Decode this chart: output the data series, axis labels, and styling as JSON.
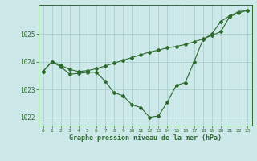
{
  "line1_x": [
    0,
    1,
    2,
    3,
    4,
    5,
    6,
    7,
    8,
    9,
    10,
    11,
    12,
    13,
    14,
    15,
    16,
    17,
    18,
    19,
    20,
    21,
    22,
    23
  ],
  "line1_y": [
    1023.65,
    1024.0,
    1023.82,
    1023.55,
    1023.58,
    1023.62,
    1023.62,
    1023.3,
    1022.88,
    1022.78,
    1022.45,
    1022.35,
    1022.0,
    1022.05,
    1022.55,
    1023.15,
    1023.25,
    1024.0,
    1024.8,
    1025.0,
    1025.45,
    1025.65,
    1025.8,
    1025.85
  ],
  "line2_x": [
    0,
    1,
    2,
    3,
    4,
    5,
    6,
    7,
    8,
    9,
    10,
    11,
    12,
    13,
    14,
    15,
    16,
    17,
    18,
    19,
    20,
    21,
    22,
    23
  ],
  "line2_y": [
    1023.65,
    1024.0,
    1023.88,
    1023.72,
    1023.65,
    1023.68,
    1023.75,
    1023.85,
    1023.95,
    1024.05,
    1024.15,
    1024.25,
    1024.35,
    1024.42,
    1024.5,
    1024.55,
    1024.62,
    1024.72,
    1024.82,
    1024.95,
    1025.08,
    1025.62,
    1025.76,
    1025.85
  ],
  "line_color": "#2d6a2d",
  "bg_color": "#cce8e8",
  "grid_color": "#aad0d0",
  "xlabel": "Graphe pression niveau de la mer (hPa)",
  "ylim": [
    1021.7,
    1026.05
  ],
  "yticks": [
    1022,
    1023,
    1024,
    1025
  ],
  "xticks": [
    0,
    1,
    2,
    3,
    4,
    5,
    6,
    7,
    8,
    9,
    10,
    11,
    12,
    13,
    14,
    15,
    16,
    17,
    18,
    19,
    20,
    21,
    22,
    23
  ],
  "marker": "D",
  "markersize": 2.0,
  "linewidth": 0.8,
  "fig_width": 3.2,
  "fig_height": 2.0,
  "dpi": 100
}
